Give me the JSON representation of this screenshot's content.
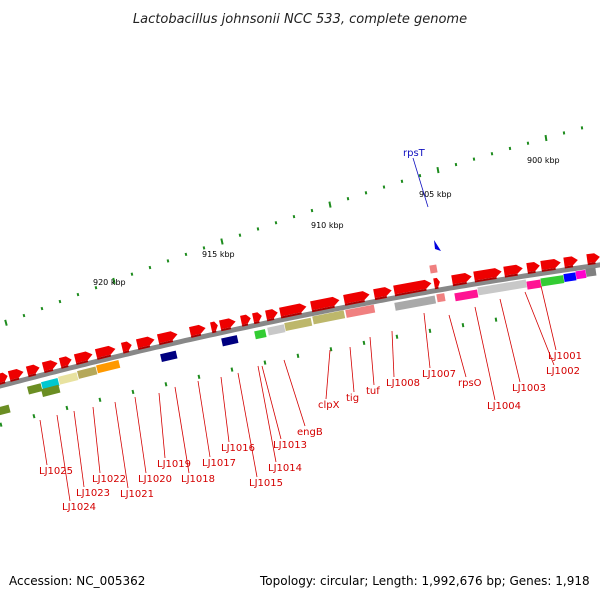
{
  "title": "Lactobacillus johnsonii NCC 533, complete genome",
  "footer": {
    "accession": "Accession: NC_005362",
    "info": "Topology: circular; Length: 1,992,676 bp; Genes: 1,918"
  },
  "scale_labels": [
    "900 kbp",
    "905 kbp",
    "910 kbp",
    "915 kbp",
    "920 kbp"
  ],
  "marker": {
    "label": "rpsT",
    "color": "#0000dd"
  },
  "gene_labels": [
    "LJ1001",
    "LJ1002",
    "LJ1003",
    "LJ1004",
    "rpsO",
    "LJ1007",
    "LJ1008",
    "tuf",
    "tig",
    "clpX",
    "engB",
    "LJ1013",
    "LJ1014",
    "LJ1015",
    "LJ1016",
    "LJ1017",
    "LJ1018",
    "LJ1019",
    "LJ1020",
    "LJ1021",
    "LJ1022",
    "LJ1023",
    "LJ1024",
    "LJ1025"
  ],
  "colors": {
    "gene_red": "#ee0000",
    "backbone": "#888888",
    "label_red": "#d40000",
    "category_colors": [
      "#6b8e23",
      "#00c8d0",
      "#e8e2a0",
      "#b5a85a",
      "#ff9900",
      "#000080",
      "#33cc33",
      "#c8c8c8",
      "#bdb76b",
      "#f08080",
      "#a9a9a9",
      "#ff1493",
      "#0000ff",
      "#ff00cc",
      "#808080"
    ]
  }
}
